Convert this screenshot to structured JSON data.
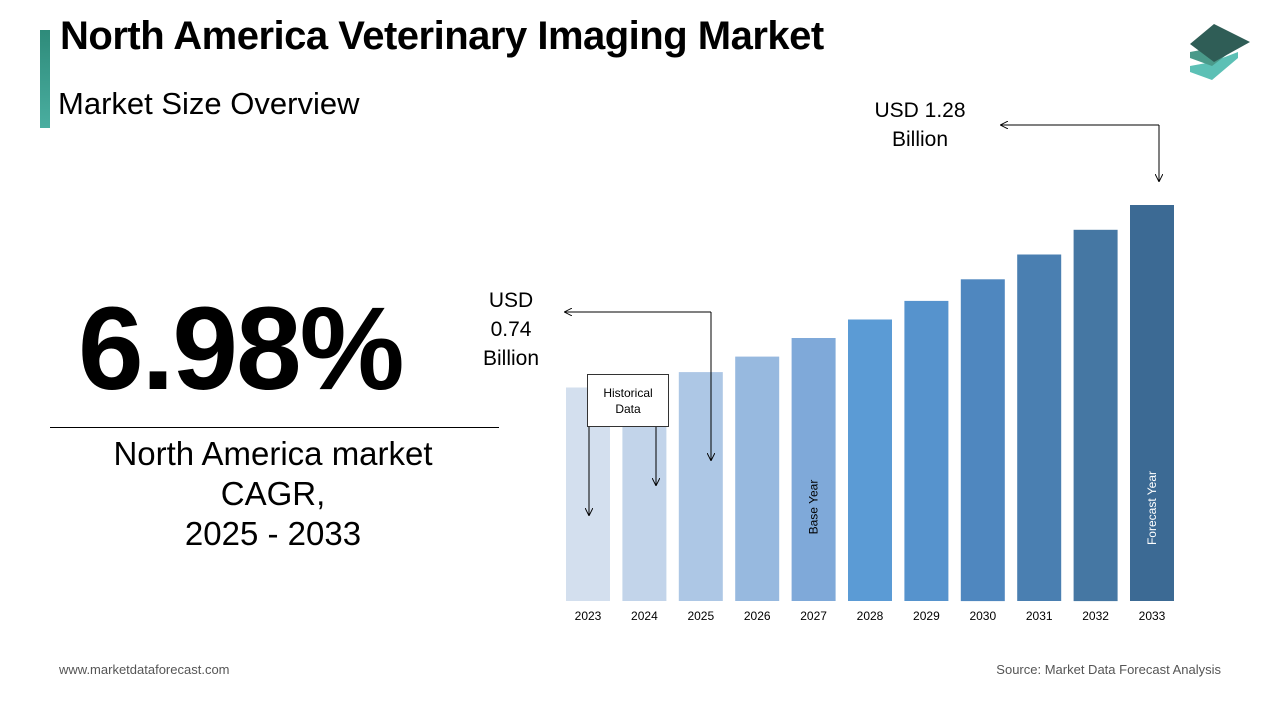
{
  "header": {
    "title": "North America Veterinary Imaging Market",
    "subtitle": "Market Size Overview"
  },
  "kpi": {
    "value": "6.98%",
    "caption_line1": "North America market",
    "caption_line2": "CAGR,",
    "caption_line3": "2025 - 2033"
  },
  "callouts": {
    "start_value_lines": [
      "USD",
      "0.74",
      "Billion"
    ],
    "end_value_lines": [
      "USD 1.28",
      "Billion"
    ],
    "historical_lines": [
      "Historical",
      "Data"
    ]
  },
  "chart_data": {
    "type": "bar",
    "categories": [
      "2023",
      "2024",
      "2025",
      "2026",
      "2027",
      "2028",
      "2029",
      "2030",
      "2031",
      "2032",
      "2033"
    ],
    "values": [
      0.69,
      0.69,
      0.74,
      0.79,
      0.85,
      0.91,
      0.97,
      1.04,
      1.12,
      1.2,
      1.28
    ],
    "colors": [
      "#d3dfee",
      "#c2d4ea",
      "#adc7e5",
      "#97b9df",
      "#7fa9d9",
      "#5b9bd5",
      "#5693cd",
      "#4f87bf",
      "#4a7fb1",
      "#4577a3",
      "#3c6a94"
    ],
    "bar_labels": {
      "2027": "Base Year",
      "2033": "Forecast Year"
    },
    "bar_label_colors": {
      "2027": "#000000",
      "2033": "#ffffff"
    }
  },
  "footer": {
    "website": "www.marketdataforecast.com",
    "source": "Source: Market Data Forecast Analysis"
  },
  "colors": {
    "accent": "#2e8b7a",
    "logo_dark": "#2f5d56",
    "logo_mid": "#4a9a8a",
    "logo_light": "#5cc0b5"
  },
  "icons": {
    "logo": "stacked-layers-icon"
  }
}
